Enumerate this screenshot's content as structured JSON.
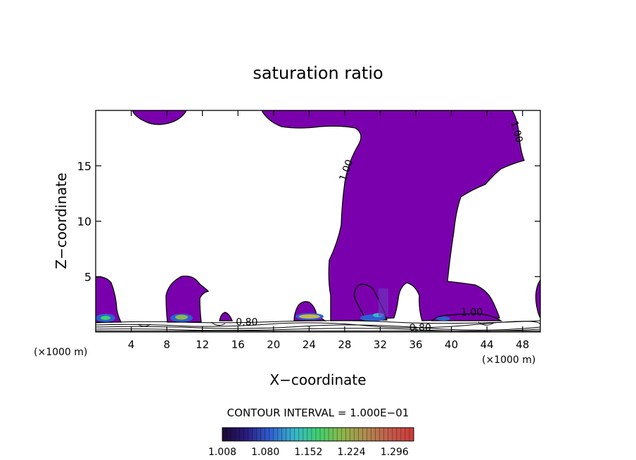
{
  "chart_data": {
    "type": "heatmap",
    "title": "saturation ratio",
    "xlabel": "X−coordinate",
    "ylabel": "Z−coordinate",
    "x_units_left": "(×1000 m)",
    "x_units_right": "(×1000 m)",
    "xlim": [
      0,
      50
    ],
    "ylim": [
      0,
      20
    ],
    "x_ticks": [
      4,
      8,
      12,
      16,
      20,
      24,
      28,
      32,
      36,
      40,
      44,
      48
    ],
    "y_ticks": [
      5,
      10,
      15
    ],
    "contour_interval_text": "CONTOUR INTERVAL = 1.000E−01",
    "contour_labels": [
      {
        "text": "1.00",
        "x": 28.5,
        "z": 14.5
      },
      {
        "text": "1.00",
        "x": 47.0,
        "z": 18.0
      },
      {
        "text": "1.00",
        "x": 42.3,
        "z": 1.5
      },
      {
        "text": "0.80",
        "x": 17.0,
        "z": 0.6
      },
      {
        "text": "0.80",
        "x": 36.5,
        "z": 0.1
      }
    ],
    "colorbar": {
      "min": 1.008,
      "max": 1.328,
      "tick_labels": [
        "1.008",
        "1.080",
        "1.152",
        "1.224",
        "1.296"
      ]
    },
    "colors": {
      "fill": "#7b00ad",
      "low": "#1a0a3a",
      "mid": "#3cc8a0",
      "high": "#c24a3a"
    }
  }
}
